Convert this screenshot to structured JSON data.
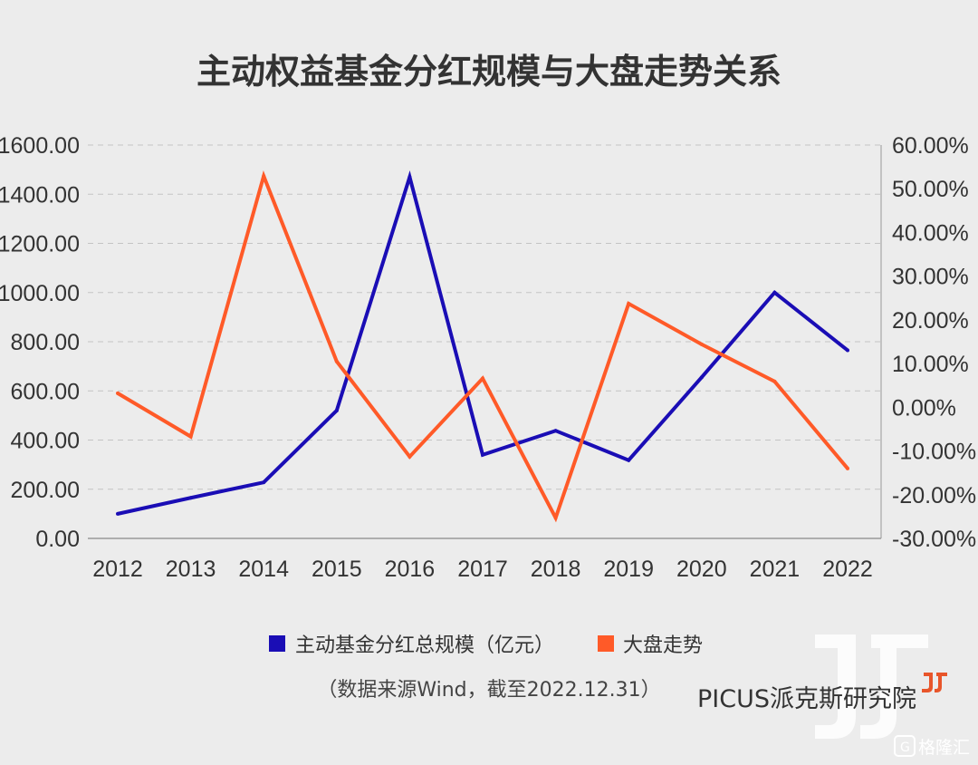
{
  "chart_data": {
    "type": "line",
    "title": "主动权益基金分红规模与大盘走势关系",
    "categories": [
      "2012",
      "2013",
      "2014",
      "2015",
      "2016",
      "2017",
      "2018",
      "2019",
      "2020",
      "2021",
      "2022"
    ],
    "series": [
      {
        "name": "主动基金分红总规模（亿元）",
        "axis": "left",
        "color": "#1a0db5",
        "values": [
          100,
          165,
          228,
          520,
          1470,
          340,
          438,
          318,
          655,
          1000,
          765
        ]
      },
      {
        "name": "大盘走势",
        "axis": "right",
        "color": "#ff5a28",
        "values": [
          3.2,
          -6.7,
          52.9,
          10.5,
          -11.3,
          6.6,
          -25.3,
          23.7,
          14.4,
          5.9,
          -14.0
        ]
      }
    ],
    "y_left": {
      "ylim": [
        0,
        1600
      ],
      "ticks": [
        "1600.00",
        "1400.00",
        "1200.00",
        "1000.00",
        "800.00",
        "600.00",
        "400.00",
        "200.00",
        "0.00"
      ]
    },
    "y_right": {
      "ylim": [
        -30,
        60
      ],
      "ticks": [
        "60.00%",
        "50.00%",
        "40.00%",
        "30.00%",
        "20.00%",
        "10.00%",
        "0.00%",
        "-10.00%",
        "-20.00%",
        "-30.00%"
      ]
    },
    "grid": true,
    "legend_position": "bottom"
  },
  "footer": {
    "source_note": "（数据来源Wind，截至2022.12.31）",
    "brand": "PICUS派克斯研究院",
    "watermark": "格隆汇"
  }
}
